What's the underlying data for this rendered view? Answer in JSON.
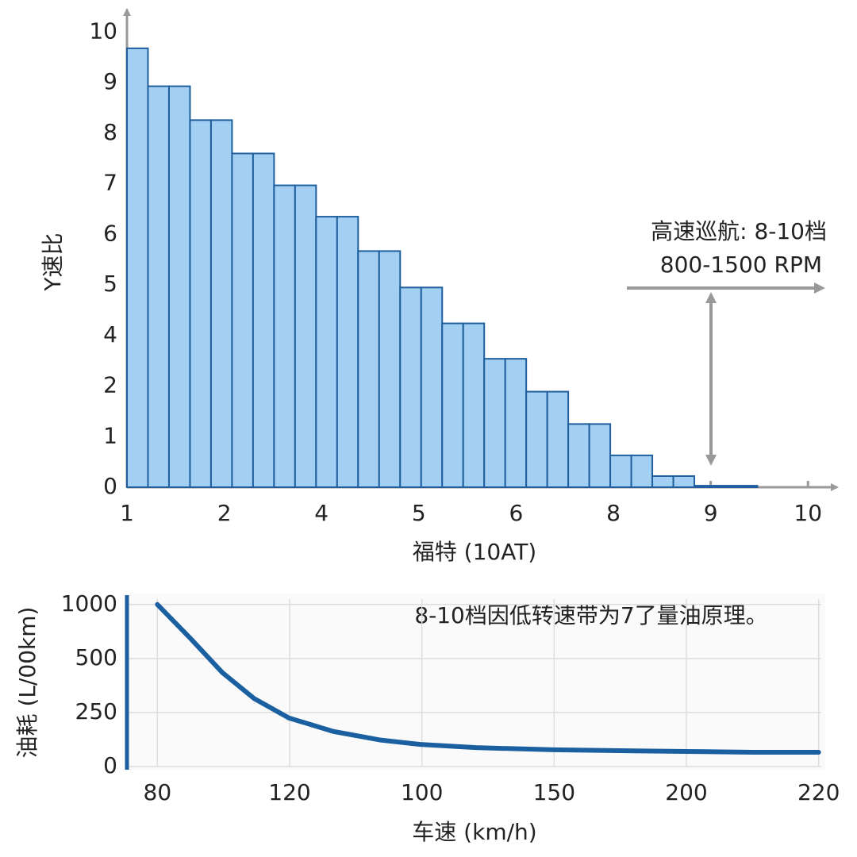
{
  "chart_data": [
    {
      "type": "histogram",
      "xlabel": "福特 (10AT)",
      "ylabel": "Y速比",
      "bins": [
        0,
        0.216,
        0.432,
        0.648,
        0.864,
        1.08,
        1.296,
        1.512,
        1.728,
        1.944,
        2.16,
        2.376,
        2.592,
        2.808,
        3.024,
        3.24,
        3.456,
        3.672,
        3.888,
        4.104,
        4.32,
        4.536,
        4.752,
        4.968,
        5.184,
        5.4,
        5.616,
        5.832,
        6.048,
        6.264,
        6.48
      ],
      "values": [
        8.68,
        7.93,
        7.93,
        7.26,
        7.26,
        6.6,
        6.6,
        5.97,
        5.97,
        5.35,
        5.35,
        4.67,
        4.67,
        3.95,
        3.95,
        3.24,
        3.24,
        2.54,
        2.54,
        1.89,
        1.89,
        1.25,
        1.25,
        0.63,
        0.63,
        0.22,
        0.22,
        0.03,
        0.03,
        0.03
      ],
      "color": "#a3d0f2",
      "edge_color": "#1f5f9e",
      "xlim": [
        0,
        7.3
      ],
      "xticks": [
        {
          "value": 0,
          "label": "1"
        },
        {
          "value": 1,
          "label": "2"
        },
        {
          "value": 2,
          "label": "4"
        },
        {
          "value": 3,
          "label": "5"
        },
        {
          "value": 4,
          "label": "6"
        },
        {
          "value": 5,
          "label": "8"
        },
        {
          "value": 6,
          "label": "9"
        },
        {
          "value": 7,
          "label": "10"
        }
      ],
      "ylim": [
        0,
        9.4
      ],
      "yticks": [
        {
          "value": 0,
          "label": "0"
        },
        {
          "value": 1,
          "label": "1"
        },
        {
          "value": 2,
          "label": "2"
        },
        {
          "value": 3,
          "label": "4"
        },
        {
          "value": 4,
          "label": "5"
        },
        {
          "value": 5,
          "label": "6"
        },
        {
          "value": 6,
          "label": "7"
        },
        {
          "value": 7,
          "label": "8"
        },
        {
          "value": 8,
          "label": "9"
        },
        {
          "value": 9,
          "label": "10"
        }
      ],
      "grid": false,
      "annotations": [
        "高速巡航: 8-10档",
        "800-1500 RPM"
      ]
    },
    {
      "type": "line",
      "xlabel": "车速 (km/h)",
      "ylabel": "油耗 (L/00km)",
      "x": [
        0,
        0.251,
        0.491,
        0.731,
        0.994,
        1.33,
        1.689,
        1.988,
        2.407,
        2.994,
        3.605,
        4.0,
        4.503,
        5.0
      ],
      "values": [
        3.0,
        2.37,
        1.74,
        1.26,
        0.9,
        0.65,
        0.49,
        0.41,
        0.35,
        0.31,
        0.29,
        0.28,
        0.265,
        0.265
      ],
      "color": "#1a5fa0",
      "xlim": [
        -0.23,
        5.02
      ],
      "xticks": [
        {
          "value": 0,
          "label": "80"
        },
        {
          "value": 1,
          "label": "120"
        },
        {
          "value": 2,
          "label": "100"
        },
        {
          "value": 3,
          "label": "150"
        },
        {
          "value": 4,
          "label": "200"
        },
        {
          "value": 5,
          "label": "220"
        }
      ],
      "ylim": [
        0,
        3.1
      ],
      "yticks": [
        {
          "value": 0,
          "label": "0"
        },
        {
          "value": 1,
          "label": "250"
        },
        {
          "value": 2,
          "label": "500"
        },
        {
          "value": 3,
          "label": "1000"
        }
      ],
      "grid": true,
      "annotations": [
        "8-10档因低转速带为7了量油原理。"
      ]
    }
  ]
}
